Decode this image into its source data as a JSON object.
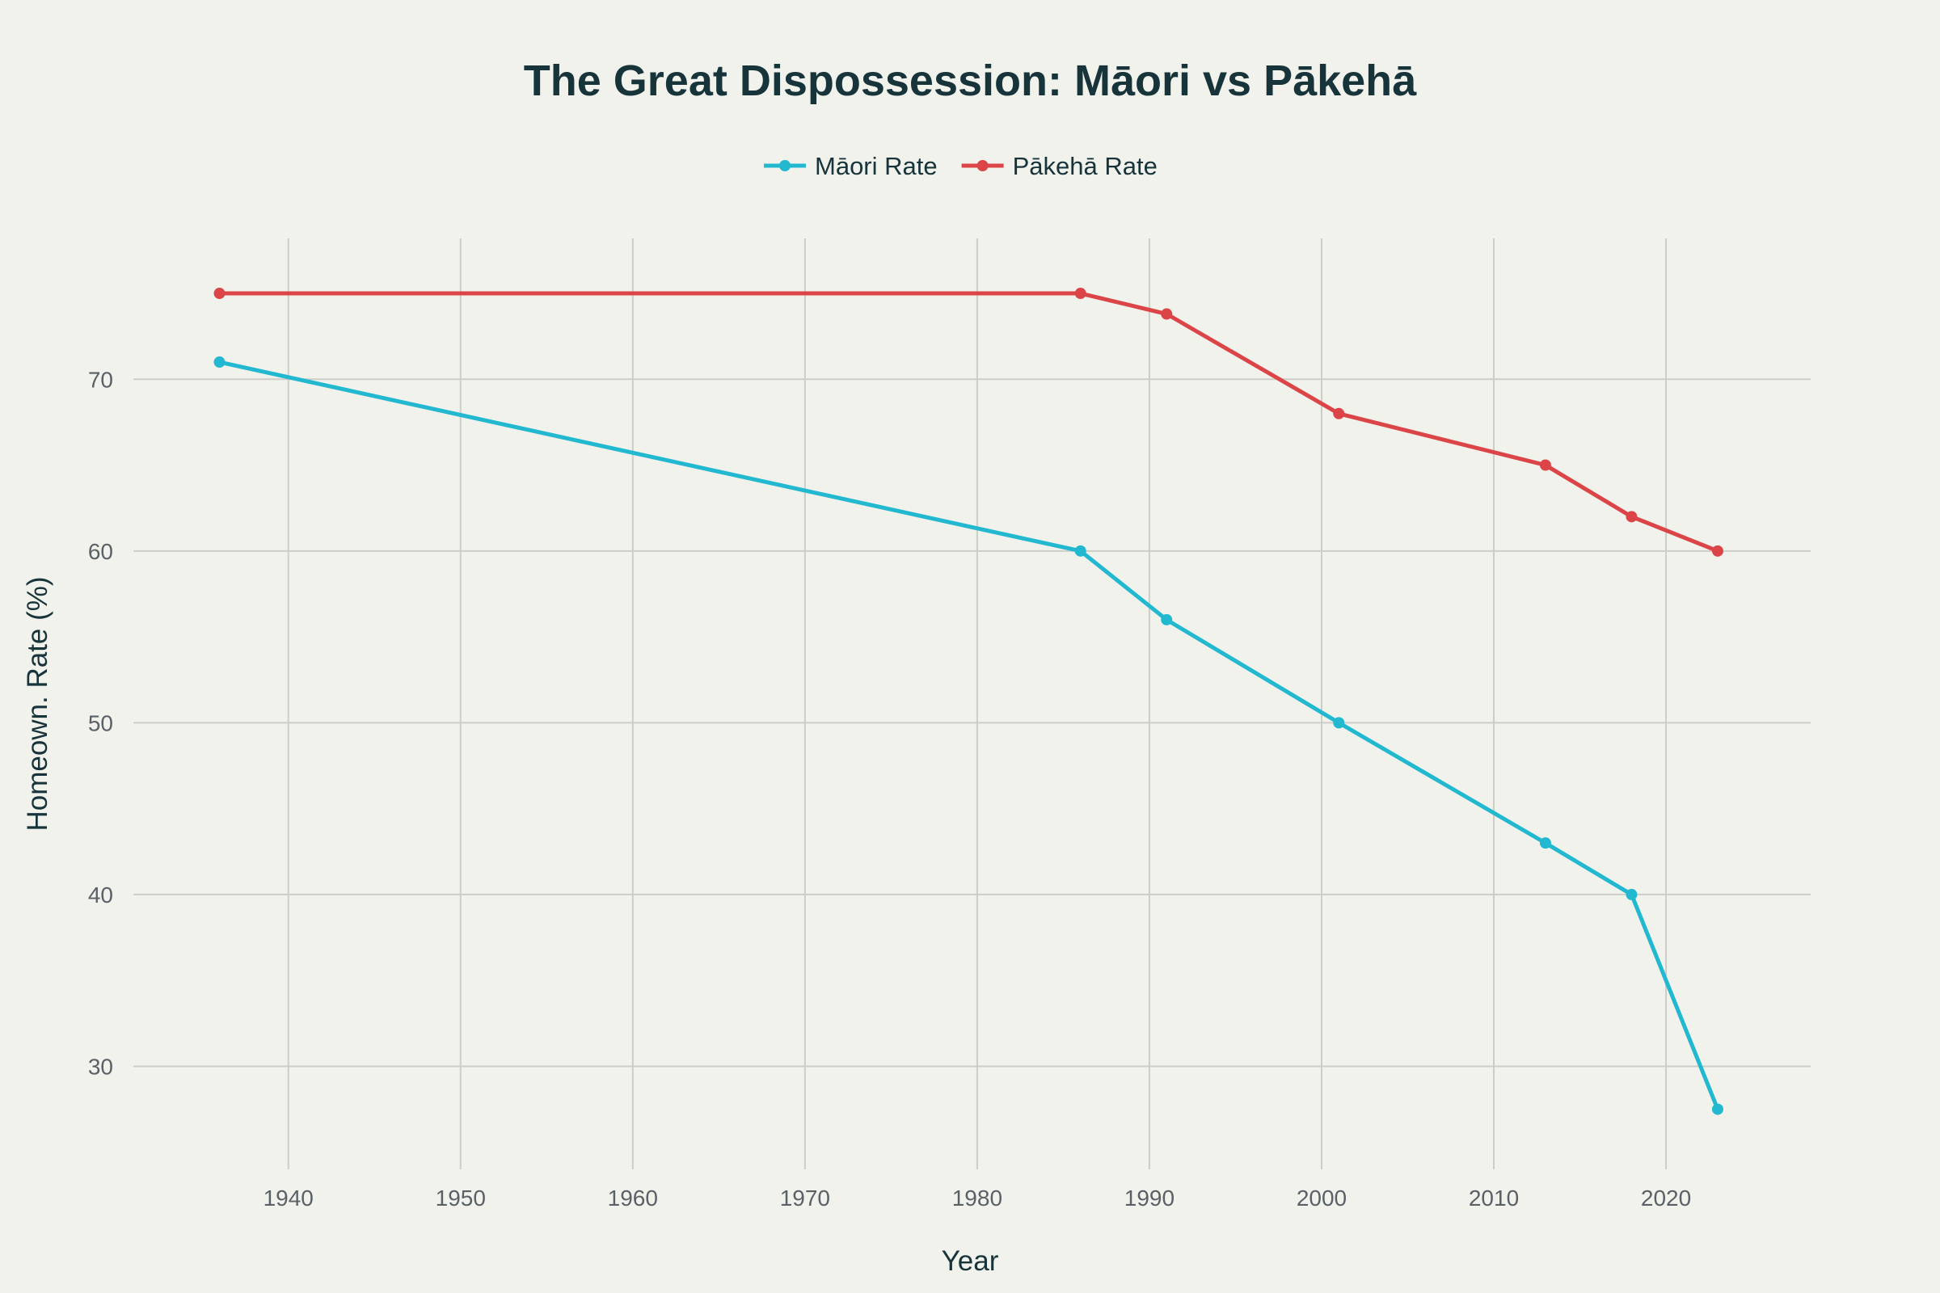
{
  "chart_data": {
    "type": "line",
    "title": "The Great Dispossession: Māori vs Pākehā",
    "xlabel": "Year",
    "ylabel": "Homeown. Rate (%)",
    "xlim": [
      1931,
      2028.4
    ],
    "ylim": [
      24,
      78.2
    ],
    "xticks": [
      1940,
      1950,
      1960,
      1970,
      1980,
      1990,
      2000,
      2010,
      2020
    ],
    "yticks": [
      30,
      40,
      50,
      60,
      70
    ],
    "grid": true,
    "legend_position": "top-center",
    "series": [
      {
        "name": "Māori Rate",
        "color": "#22b8cf",
        "x": [
          1936,
          1986,
          1991,
          2001,
          2013,
          2018,
          2023
        ],
        "y": [
          71,
          60,
          56,
          50,
          43,
          40,
          27.5
        ]
      },
      {
        "name": "Pākehā Rate",
        "color": "#dc4548",
        "x": [
          1936,
          1986,
          1991,
          2001,
          2013,
          2018,
          2023
        ],
        "y": [
          75,
          75,
          73.8,
          68,
          65,
          62,
          60
        ]
      }
    ]
  }
}
